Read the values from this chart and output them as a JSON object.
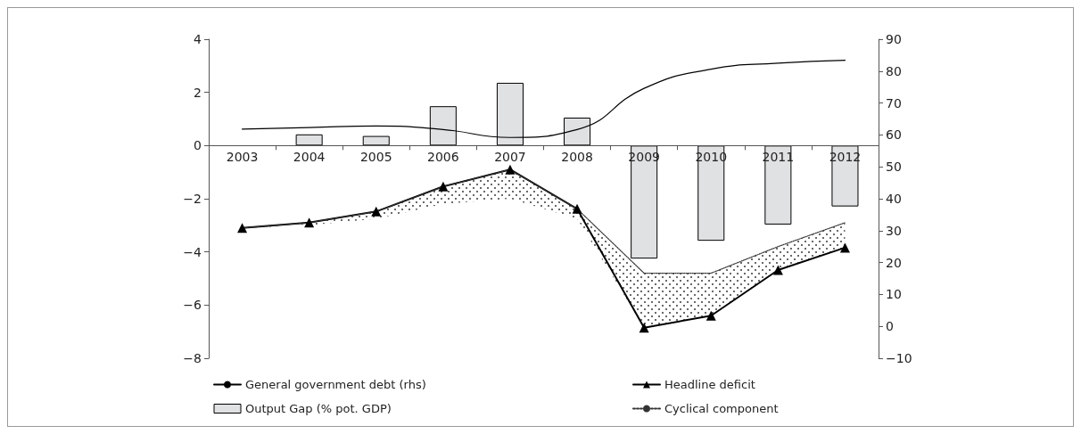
{
  "chart_data": {
    "type": "bar",
    "categories": [
      "2003",
      "2004",
      "2005",
      "2006",
      "2007",
      "2008",
      "2009",
      "2010",
      "2011",
      "2012"
    ],
    "series": [
      {
        "name": "General government debt (rhs)",
        "type": "line",
        "axis": "y2",
        "color": "#000000",
        "marker": "none",
        "values": [
          61.8,
          62.3,
          62.8,
          61.7,
          59.2,
          61.7,
          74.6,
          80.6,
          82.5,
          83.4
        ]
      },
      {
        "name": "Headline deficit",
        "type": "line",
        "color": "#000000",
        "marker": "triangle",
        "values": [
          -3.1,
          -2.9,
          -2.48,
          -1.54,
          -0.9,
          -2.38,
          -6.85,
          -6.4,
          -4.68,
          -3.84
        ]
      },
      {
        "name": "Output Gap (% pot. GDP)",
        "color": "#e0e1e3",
        "values": [
          null,
          0.42,
          0.36,
          1.48,
          2.36,
          1.05,
          -4.25,
          -3.58,
          -2.97,
          -2.29
        ]
      },
      {
        "name": "Cyclical component",
        "type": "line",
        "marker": "none",
        "line_style": "dotted",
        "color": "#333333",
        "values": [
          -3.1,
          -2.9,
          -2.48,
          -1.54,
          -0.9,
          -2.38,
          -4.8,
          -4.8,
          -3.8,
          -2.9
        ],
        "upper": [
          -3.1,
          -2.9,
          -2.48,
          -1.54,
          -0.9,
          -2.38,
          -4.8,
          -4.8,
          -3.8,
          -2.9
        ],
        "lower": [
          -3.1,
          -3.0,
          -2.75,
          -2.2,
          -2.0,
          -2.75,
          -6.85,
          -6.4,
          -4.68,
          -3.84
        ]
      }
    ],
    "ylim": [
      -8,
      4
    ],
    "yticks": [
      -8,
      -6,
      -4,
      -2,
      0,
      2,
      4
    ],
    "y2lim": [
      -10,
      90
    ],
    "y2ticks": [
      -10,
      0,
      10,
      20,
      30,
      40,
      50,
      60,
      70,
      80,
      90
    ],
    "legend": "bottom",
    "grid": false
  }
}
